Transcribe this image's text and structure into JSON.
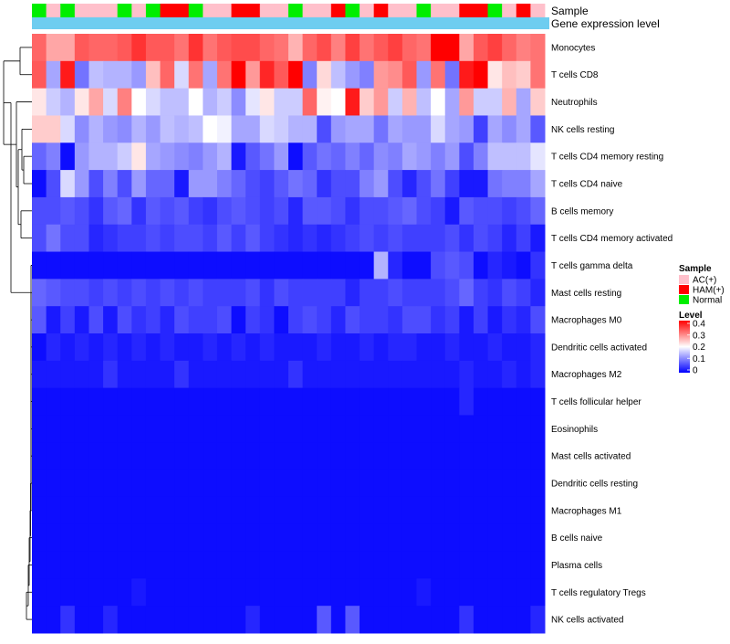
{
  "chart_data": {
    "type": "heatmap",
    "annotation_labels": [
      "Sample",
      "Gene expression level"
    ],
    "annotation_bar_colors": {
      "Gene expression level": "#6ecdf0"
    },
    "sample_groups": [
      "Normal",
      "AC(+)",
      "Normal",
      "AC(+)",
      "AC(+)",
      "AC(+)",
      "Normal",
      "AC(+)",
      "Normal",
      "HAM(+)",
      "HAM(+)",
      "Normal",
      "AC(+)",
      "AC(+)",
      "HAM(+)",
      "HAM(+)",
      "AC(+)",
      "AC(+)",
      "Normal",
      "AC(+)",
      "AC(+)",
      "HAM(+)",
      "Normal",
      "AC(+)",
      "HAM(+)",
      "AC(+)",
      "AC(+)",
      "Normal",
      "AC(+)",
      "AC(+)",
      "HAM(+)",
      "HAM(+)",
      "Normal",
      "AC(+)",
      "HAM(+)",
      "AC(+)"
    ],
    "rows": [
      "Monocytes",
      "T cells CD8",
      "Neutrophils",
      "NK cells resting",
      "T cells CD4 memory resting",
      "T cells CD4 naive",
      "B cells memory",
      "T cells CD4 memory activated",
      "T cells gamma delta",
      "Mast cells resting",
      "Macrophages M0",
      "Dendritic cells activated",
      "Macrophages M2",
      "T cells follicular helper",
      "Eosinophils",
      "Mast cells activated",
      "Dendritic cells resting",
      "Macrophages M1",
      "B cells naive",
      "Plasma cells",
      "T cells regulatory  Tregs",
      "NK cells activated"
    ],
    "values": [
      [
        0.32,
        0.27,
        0.27,
        0.33,
        0.32,
        0.32,
        0.33,
        0.36,
        0.33,
        0.33,
        0.31,
        0.36,
        0.31,
        0.33,
        0.34,
        0.34,
        0.32,
        0.31,
        0.26,
        0.32,
        0.34,
        0.3,
        0.35,
        0.31,
        0.33,
        0.35,
        0.32,
        0.31,
        0.4,
        0.4,
        0.27,
        0.33,
        0.35,
        0.32,
        0.3,
        0.31
      ],
      [
        0.33,
        0.13,
        0.38,
        0.09,
        0.15,
        0.14,
        0.14,
        0.12,
        0.25,
        0.32,
        0.17,
        0.31,
        0.13,
        0.31,
        0.4,
        0.28,
        0.37,
        0.33,
        0.4,
        0.1,
        0.23,
        0.15,
        0.12,
        0.1,
        0.28,
        0.29,
        0.33,
        0.12,
        0.31,
        0.09,
        0.38,
        0.4,
        0.22,
        0.25,
        0.24,
        0.31
      ],
      [
        0.22,
        0.16,
        0.14,
        0.22,
        0.27,
        0.17,
        0.3,
        0.2,
        0.17,
        0.15,
        0.15,
        0.2,
        0.14,
        0.16,
        0.11,
        0.18,
        0.22,
        0.16,
        0.16,
        0.32,
        0.21,
        0.2,
        0.38,
        0.24,
        0.28,
        0.16,
        0.26,
        0.15,
        0.2,
        0.13,
        0.28,
        0.16,
        0.16,
        0.26,
        0.13,
        0.24
      ],
      [
        0.24,
        0.24,
        0.17,
        0.11,
        0.14,
        0.12,
        0.11,
        0.14,
        0.12,
        0.15,
        0.14,
        0.15,
        0.2,
        0.19,
        0.13,
        0.13,
        0.17,
        0.16,
        0.14,
        0.14,
        0.06,
        0.12,
        0.13,
        0.13,
        0.09,
        0.13,
        0.12,
        0.12,
        0.17,
        0.13,
        0.12,
        0.05,
        0.13,
        0.11,
        0.13,
        0.07
      ],
      [
        0.08,
        0.1,
        0.01,
        0.12,
        0.14,
        0.14,
        0.16,
        0.22,
        0.13,
        0.12,
        0.11,
        0.1,
        0.12,
        0.14,
        0.02,
        0.07,
        0.09,
        0.12,
        0.01,
        0.07,
        0.09,
        0.08,
        0.1,
        0.08,
        0.11,
        0.1,
        0.13,
        0.12,
        0.1,
        0.12,
        0.06,
        0.1,
        0.15,
        0.15,
        0.15,
        0.18
      ],
      [
        0.01,
        0.06,
        0.17,
        0.12,
        0.06,
        0.1,
        0.06,
        0.12,
        0.08,
        0.08,
        0.02,
        0.12,
        0.12,
        0.1,
        0.08,
        0.06,
        0.05,
        0.07,
        0.09,
        0.08,
        0.04,
        0.06,
        0.06,
        0.1,
        0.12,
        0.06,
        0.03,
        0.06,
        0.09,
        0.05,
        0.02,
        0.02,
        0.09,
        0.1,
        0.1,
        0.13
      ],
      [
        0.06,
        0.06,
        0.07,
        0.06,
        0.04,
        0.07,
        0.08,
        0.04,
        0.07,
        0.06,
        0.07,
        0.05,
        0.04,
        0.06,
        0.07,
        0.06,
        0.05,
        0.06,
        0.03,
        0.07,
        0.07,
        0.06,
        0.04,
        0.06,
        0.06,
        0.07,
        0.08,
        0.06,
        0.05,
        0.02,
        0.07,
        0.06,
        0.06,
        0.05,
        0.06,
        0.08
      ],
      [
        0.06,
        0.09,
        0.06,
        0.06,
        0.03,
        0.04,
        0.05,
        0.05,
        0.06,
        0.05,
        0.06,
        0.06,
        0.05,
        0.07,
        0.05,
        0.07,
        0.05,
        0.04,
        0.03,
        0.04,
        0.03,
        0.04,
        0.05,
        0.06,
        0.05,
        0.06,
        0.05,
        0.05,
        0.05,
        0.06,
        0.04,
        0.06,
        0.05,
        0.03,
        0.05,
        0.02
      ],
      [
        0.01,
        0.01,
        0.01,
        0.01,
        0.01,
        0.01,
        0.01,
        0.01,
        0.01,
        0.01,
        0.01,
        0.01,
        0.01,
        0.01,
        0.01,
        0.01,
        0.01,
        0.01,
        0.01,
        0.01,
        0.01,
        0.01,
        0.01,
        0.01,
        0.14,
        0.03,
        0.01,
        0.01,
        0.06,
        0.07,
        0.06,
        0.01,
        0.03,
        0.02,
        0.01,
        0.04
      ],
      [
        0.08,
        0.07,
        0.06,
        0.06,
        0.05,
        0.06,
        0.05,
        0.06,
        0.05,
        0.06,
        0.05,
        0.06,
        0.05,
        0.05,
        0.05,
        0.06,
        0.04,
        0.06,
        0.05,
        0.05,
        0.05,
        0.05,
        0.03,
        0.05,
        0.05,
        0.06,
        0.05,
        0.05,
        0.05,
        0.06,
        0.08,
        0.05,
        0.04,
        0.06,
        0.05,
        0.03
      ],
      [
        0.07,
        0.02,
        0.05,
        0.02,
        0.06,
        0.02,
        0.06,
        0.04,
        0.05,
        0.03,
        0.06,
        0.05,
        0.05,
        0.06,
        0.01,
        0.05,
        0.04,
        0.01,
        0.05,
        0.06,
        0.05,
        0.03,
        0.06,
        0.05,
        0.05,
        0.04,
        0.06,
        0.06,
        0.04,
        0.05,
        0.02,
        0.05,
        0.02,
        0.04,
        0.03,
        0.06
      ],
      [
        0.01,
        0.03,
        0.02,
        0.03,
        0.02,
        0.03,
        0.02,
        0.03,
        0.02,
        0.03,
        0.02,
        0.02,
        0.03,
        0.02,
        0.03,
        0.02,
        0.03,
        0.02,
        0.02,
        0.02,
        0.03,
        0.02,
        0.02,
        0.03,
        0.02,
        0.03,
        0.03,
        0.02,
        0.02,
        0.03,
        0.02,
        0.02,
        0.03,
        0.02,
        0.02,
        0.03
      ],
      [
        0.02,
        0.02,
        0.02,
        0.02,
        0.02,
        0.04,
        0.02,
        0.02,
        0.02,
        0.02,
        0.04,
        0.02,
        0.02,
        0.02,
        0.02,
        0.02,
        0.02,
        0.02,
        0.04,
        0.02,
        0.02,
        0.02,
        0.02,
        0.02,
        0.02,
        0.02,
        0.02,
        0.02,
        0.02,
        0.02,
        0.03,
        0.02,
        0.02,
        0.03,
        0.02,
        0.03
      ],
      [
        0.01,
        0.01,
        0.01,
        0.01,
        0.01,
        0.01,
        0.01,
        0.01,
        0.01,
        0.01,
        0.01,
        0.01,
        0.01,
        0.01,
        0.01,
        0.01,
        0.01,
        0.01,
        0.01,
        0.01,
        0.01,
        0.01,
        0.01,
        0.01,
        0.01,
        0.01,
        0.01,
        0.01,
        0.01,
        0.01,
        0.03,
        0.01,
        0.01,
        0.01,
        0.01,
        0.01
      ],
      [
        0.01,
        0.01,
        0.01,
        0.01,
        0.01,
        0.01,
        0.01,
        0.01,
        0.01,
        0.01,
        0.01,
        0.01,
        0.01,
        0.01,
        0.01,
        0.01,
        0.01,
        0.01,
        0.01,
        0.01,
        0.01,
        0.01,
        0.01,
        0.01,
        0.01,
        0.01,
        0.01,
        0.01,
        0.01,
        0.01,
        0.01,
        0.01,
        0.01,
        0.01,
        0.01,
        0.01
      ],
      [
        0.01,
        0.01,
        0.01,
        0.01,
        0.01,
        0.01,
        0.01,
        0.01,
        0.01,
        0.01,
        0.01,
        0.01,
        0.01,
        0.01,
        0.01,
        0.01,
        0.01,
        0.01,
        0.01,
        0.01,
        0.01,
        0.01,
        0.01,
        0.01,
        0.01,
        0.01,
        0.01,
        0.01,
        0.01,
        0.01,
        0.01,
        0.01,
        0.01,
        0.01,
        0.01,
        0.01
      ],
      [
        0.01,
        0.01,
        0.01,
        0.01,
        0.01,
        0.01,
        0.01,
        0.01,
        0.01,
        0.01,
        0.01,
        0.01,
        0.01,
        0.01,
        0.01,
        0.01,
        0.01,
        0.01,
        0.01,
        0.01,
        0.01,
        0.01,
        0.01,
        0.01,
        0.01,
        0.01,
        0.01,
        0.01,
        0.01,
        0.01,
        0.01,
        0.01,
        0.01,
        0.01,
        0.01,
        0.01
      ],
      [
        0.01,
        0.01,
        0.01,
        0.01,
        0.01,
        0.01,
        0.01,
        0.01,
        0.01,
        0.01,
        0.01,
        0.01,
        0.01,
        0.01,
        0.01,
        0.01,
        0.01,
        0.01,
        0.01,
        0.01,
        0.01,
        0.01,
        0.01,
        0.01,
        0.01,
        0.01,
        0.01,
        0.01,
        0.01,
        0.01,
        0.01,
        0.01,
        0.01,
        0.01,
        0.01,
        0.01
      ],
      [
        0.01,
        0.01,
        0.01,
        0.01,
        0.01,
        0.01,
        0.01,
        0.01,
        0.01,
        0.01,
        0.01,
        0.01,
        0.01,
        0.01,
        0.01,
        0.01,
        0.01,
        0.01,
        0.01,
        0.01,
        0.01,
        0.01,
        0.01,
        0.01,
        0.01,
        0.01,
        0.01,
        0.01,
        0.01,
        0.01,
        0.01,
        0.01,
        0.01,
        0.01,
        0.01,
        0.01
      ],
      [
        0.01,
        0.01,
        0.01,
        0.01,
        0.01,
        0.01,
        0.01,
        0.01,
        0.01,
        0.01,
        0.01,
        0.01,
        0.01,
        0.01,
        0.01,
        0.01,
        0.01,
        0.01,
        0.01,
        0.01,
        0.01,
        0.01,
        0.01,
        0.01,
        0.01,
        0.01,
        0.01,
        0.01,
        0.01,
        0.01,
        0.01,
        0.01,
        0.01,
        0.01,
        0.01,
        0.01
      ],
      [
        0.01,
        0.01,
        0.01,
        0.01,
        0.01,
        0.01,
        0.01,
        0.02,
        0.01,
        0.01,
        0.01,
        0.01,
        0.01,
        0.01,
        0.01,
        0.01,
        0.01,
        0.01,
        0.01,
        0.01,
        0.01,
        0.01,
        0.01,
        0.01,
        0.01,
        0.01,
        0.01,
        0.02,
        0.01,
        0.01,
        0.01,
        0.01,
        0.01,
        0.01,
        0.01,
        0.01
      ],
      [
        0.01,
        0.01,
        0.04,
        0.01,
        0.01,
        0.03,
        0.01,
        0.01,
        0.01,
        0.01,
        0.01,
        0.01,
        0.01,
        0.01,
        0.01,
        0.03,
        0.01,
        0.01,
        0.01,
        0.01,
        0.07,
        0.01,
        0.07,
        0.01,
        0.01,
        0.01,
        0.01,
        0.01,
        0.01,
        0.01,
        0.04,
        0.01,
        0.01,
        0.01,
        0.01,
        0.03
      ]
    ],
    "legend": {
      "sample_title": "Sample",
      "sample_entries": [
        {
          "label": "AC(+)",
          "color": "#ffc0cb"
        },
        {
          "label": "HAM(+)",
          "color": "#ff0000"
        },
        {
          "label": "Normal",
          "color": "#00ee00"
        }
      ],
      "level_title": "Level",
      "level_ticks": [
        "0.4",
        "0.3",
        "0.2",
        "0.1",
        "0"
      ],
      "level_range": [
        0,
        0.4
      ],
      "level_colors": {
        "low": "#0000ff",
        "mid": "#ffffff",
        "high": "#ff0000",
        "midpoint": 0.2
      }
    }
  }
}
